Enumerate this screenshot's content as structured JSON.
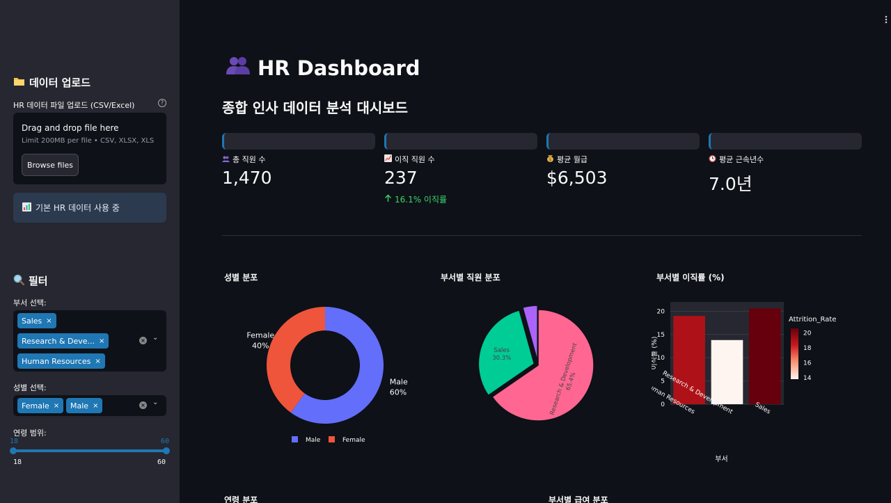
{
  "sidebar": {
    "upload_heading": "데이터 업로드",
    "upload_label": "HR 데이터 파일 업로드 (CSV/Excel)",
    "help": "?",
    "drop_title": "Drag and drop file here",
    "drop_limit": "Limit 200MB per file • CSV, XLSX, XLS",
    "browse_label": "Browse files",
    "info_text": "기본 HR 데이터 사용 중",
    "filter_heading": "필터",
    "dept_label": "부서 선택:",
    "dept_tags": [
      "Sales",
      "Research & Deve...",
      "Human Resources"
    ],
    "gender_label": "성별 선택:",
    "gender_tags": [
      "Female",
      "Male"
    ],
    "tag_remove": "×",
    "clear": "×",
    "chevron": "⌄",
    "age_label": "연령 범위:",
    "age_min": "18",
    "age_max": "60",
    "age_value_min": "18",
    "age_value_max": "60"
  },
  "main": {
    "menu": "⋮",
    "title": "HR Dashboard",
    "subtitle": "종합 인사 데이터 분석 대시보드",
    "metrics": [
      {
        "label": "총 직원 수",
        "value": "1,470",
        "icon": "people-icon"
      },
      {
        "label": "이직 직원 수",
        "value": "237",
        "delta": "16.1% 이직률",
        "icon": "chart-up-icon"
      },
      {
        "label": "평균 월급",
        "value": "$6,503",
        "icon": "money-bag-icon"
      },
      {
        "label": "평균 근속년수",
        "value": "7.0년",
        "icon": "clock-icon"
      }
    ],
    "bottom_titles": [
      "연령 분포",
      "부서별 급여 분포"
    ]
  },
  "chart_data": [
    {
      "type": "pie",
      "title": "성별 분포",
      "hole": true,
      "labels": [
        "Male",
        "Female"
      ],
      "values": [
        60,
        40
      ],
      "slice_labels": [
        "Male\n60%",
        "Female\n40%"
      ],
      "colors": [
        "#636efa",
        "#ef553b"
      ],
      "legend": "bottom"
    },
    {
      "type": "pie",
      "title": "부서별 직원 분포",
      "labels": [
        "Research & Development",
        "Sales",
        "Human Resources"
      ],
      "values": [
        65.4,
        30.3,
        4.3
      ],
      "slice_texts": [
        "Research & Development\n65.4%",
        "Sales\n30.3%",
        ""
      ],
      "colors": [
        "#ff6692",
        "#00cc96",
        "#ab63fa"
      ]
    },
    {
      "type": "bar",
      "title": "부서별 이직률 (%)",
      "categories": [
        "Human Resources",
        "Research & Development",
        "Sales"
      ],
      "values": [
        19.0,
        13.8,
        20.6
      ],
      "xlabel": "부서",
      "ylabel": "이직률 (%)",
      "ylim": [
        0,
        22
      ],
      "yticks": [
        0,
        5,
        10,
        15,
        20
      ],
      "colorbar": {
        "title": "Attrition_Rate",
        "ticks": [
          14,
          16,
          18,
          20
        ],
        "range": [
          13.8,
          20.6
        ]
      }
    }
  ]
}
